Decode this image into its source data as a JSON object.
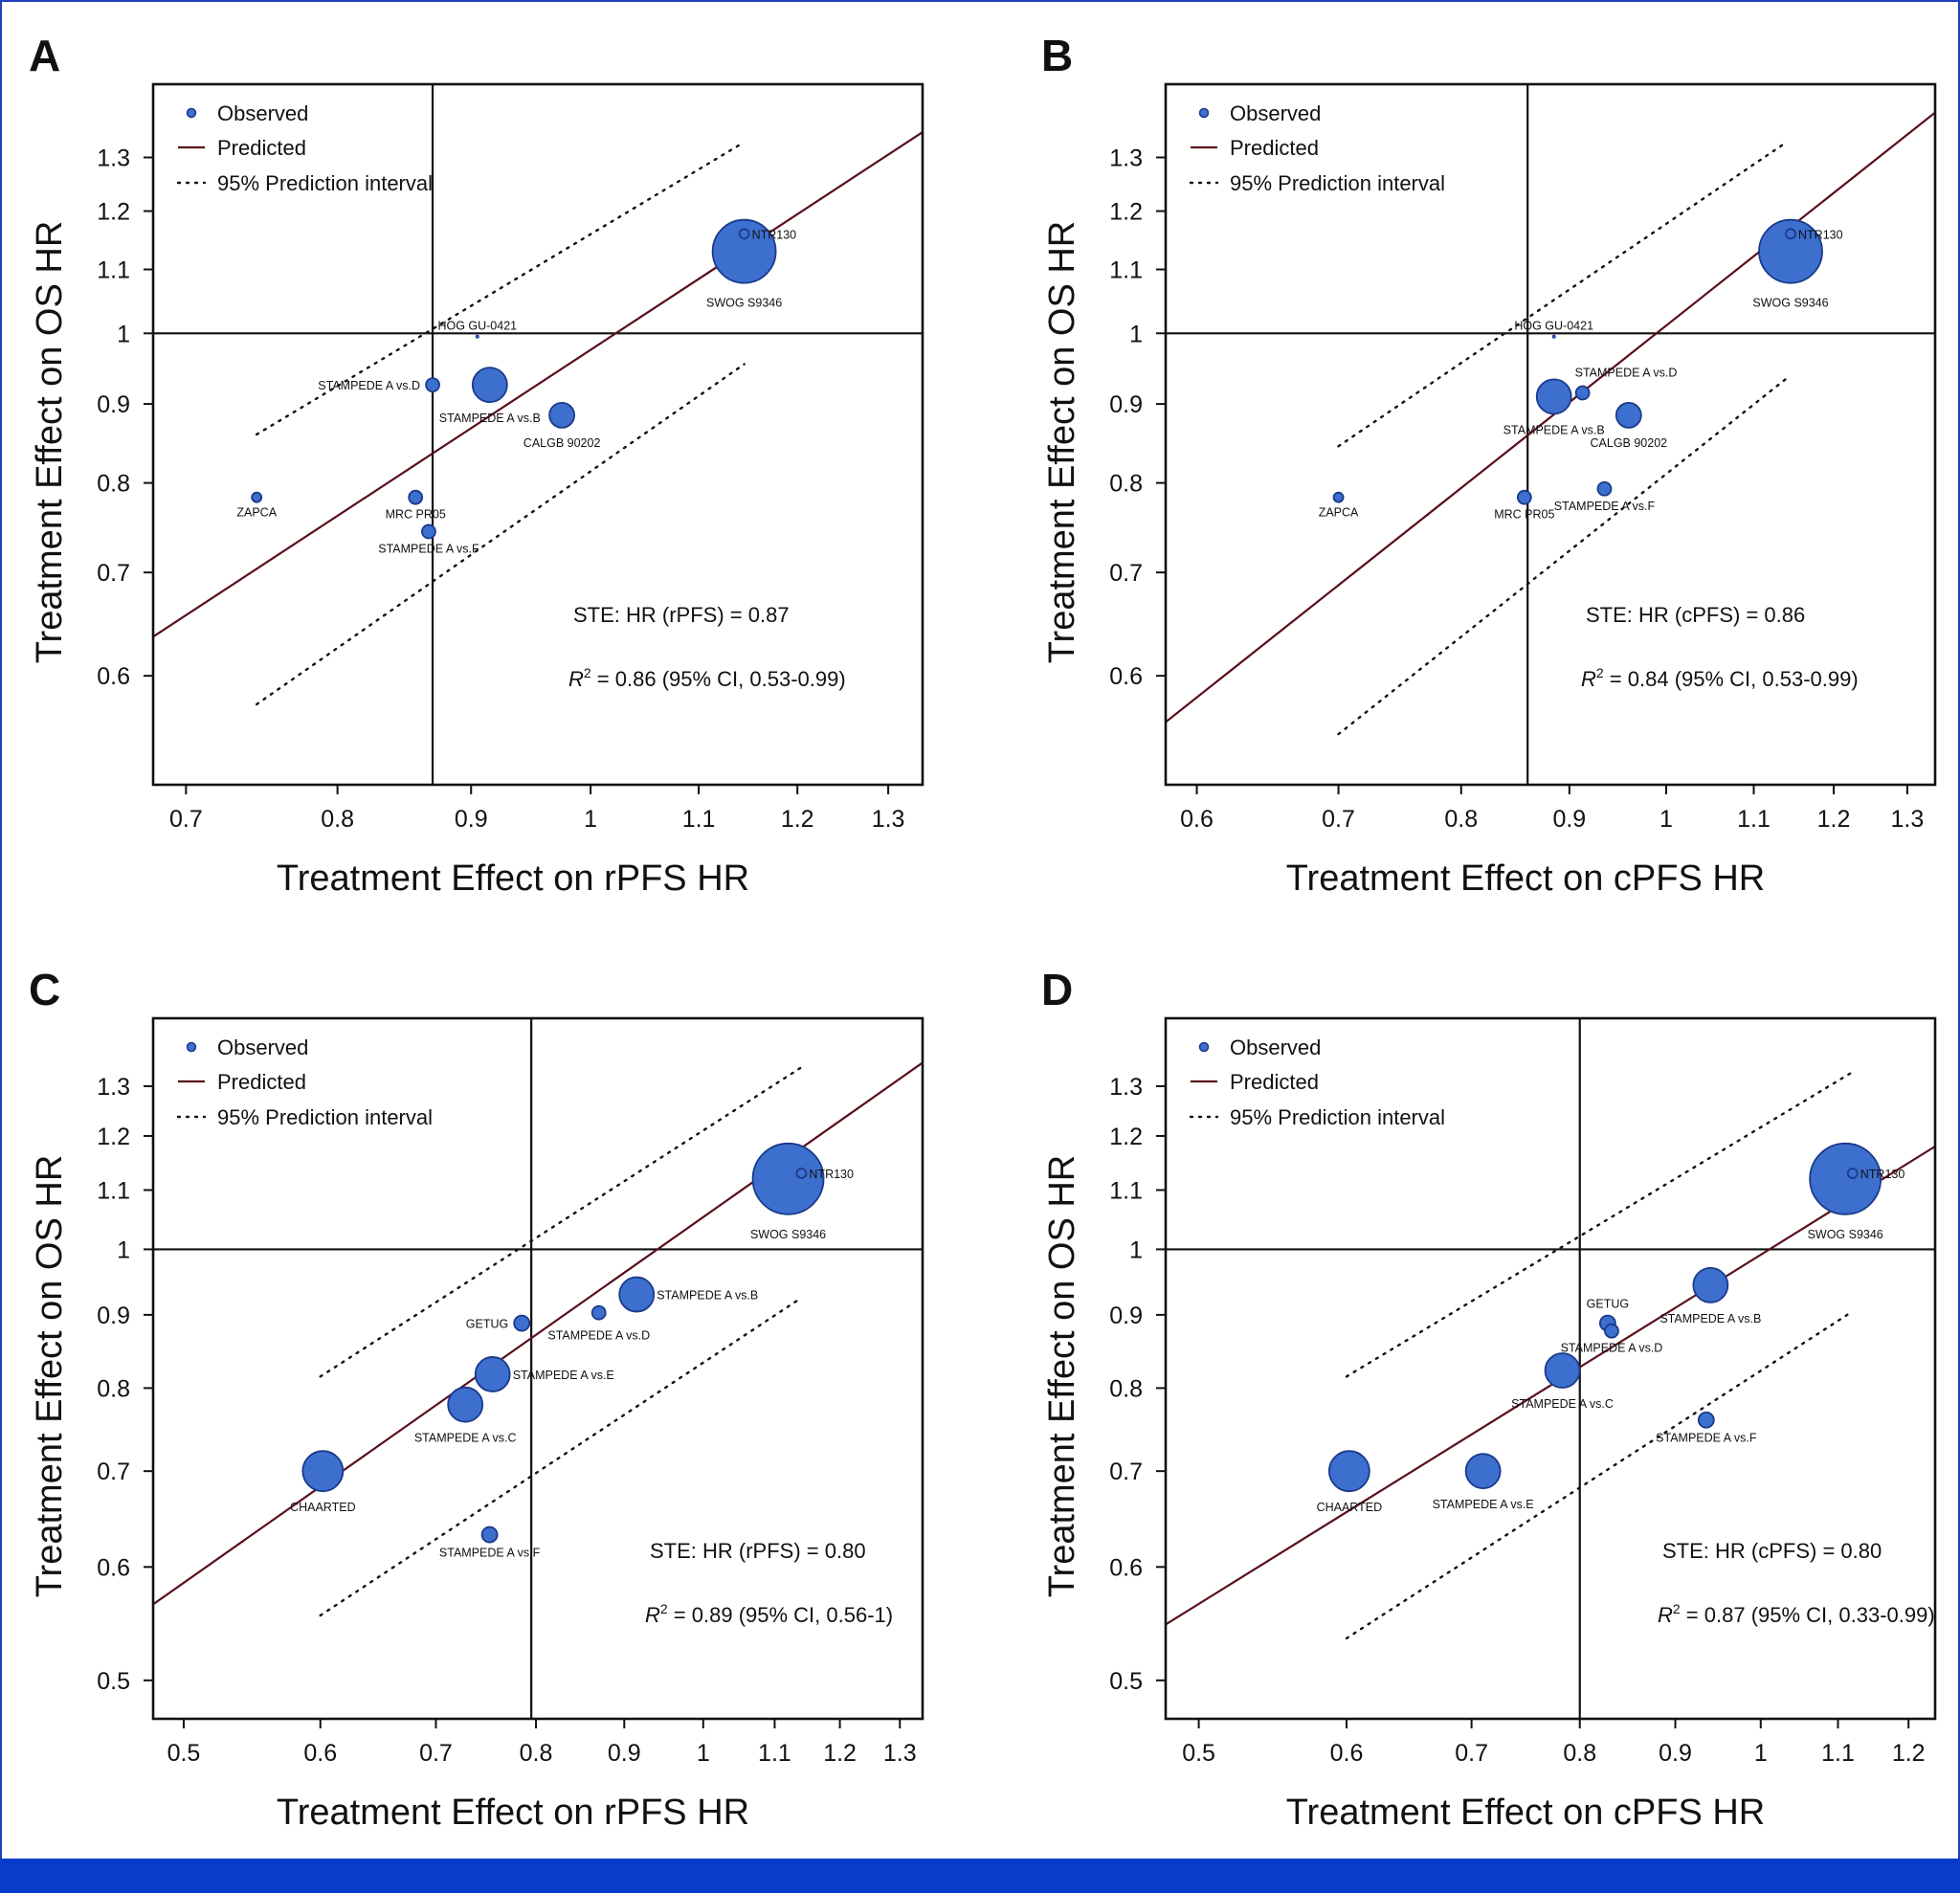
{
  "colors": {
    "point_fill": "#3d6fcf",
    "point_stroke": "#1a3a8a",
    "predicted_line": "#5a0f1a",
    "frame_border": "#1f3fbf",
    "bottom_bar": "#0a3ccc"
  },
  "chart_data": [
    {
      "panel": "A",
      "type": "scatter",
      "xlabel": "Treatment Effect on rPFS HR",
      "ylabel": "Treatment Effect on OS HR",
      "xscale": "log",
      "yscale": "log",
      "xlim": [
        0.68,
        1.34
      ],
      "ylim": [
        0.51,
        1.45
      ],
      "xticks": [
        0.7,
        0.8,
        0.9,
        1,
        1.1,
        1.2,
        1.3
      ],
      "xtick_labels": [
        "0.7",
        "0.8",
        "0.9",
        "1",
        "1.1",
        "1.2",
        "1.3"
      ],
      "yticks": [
        0.6,
        0.7,
        0.8,
        0.9,
        1,
        1.1,
        1.2,
        1.3
      ],
      "ytick_labels": [
        "0.6",
        "0.7",
        "0.8",
        "0.9",
        "1",
        "1.1",
        "1.2",
        "1.3"
      ],
      "vline": 0.87,
      "hline": 1,
      "predicted": {
        "x": [
          0.68,
          1.34
        ],
        "y": [
          0.636,
          1.35
        ]
      },
      "pi_upper": {
        "x": [
          0.745,
          1.145
        ],
        "y": [
          0.86,
          1.33
        ]
      },
      "pi_lower": {
        "x": [
          0.745,
          1.145
        ],
        "y": [
          0.575,
          0.955
        ]
      },
      "legend": {
        "observed": "Observed",
        "predicted": "Predicted",
        "interval": "95% Prediction interval"
      },
      "ste_text": "STE: HR (rPFS) = 0.87",
      "r2_symbol": "R",
      "r2_sup": "2",
      "r2_text": " = 0.86 (95% CI, 0.53-0.99)",
      "points": [
        {
          "label": "NTR130",
          "x": 1.145,
          "y": 1.16,
          "r": 5,
          "hollow": true,
          "lpos": "right"
        },
        {
          "label": "SWOG S9346",
          "x": 1.145,
          "y": 1.13,
          "r": 33,
          "lpos": "below",
          "loff": 10
        },
        {
          "label": "HOG GU-0421",
          "x": 0.905,
          "y": 0.995,
          "r": 1.5,
          "lpos": "above",
          "loff": 6
        },
        {
          "label": "STAMPEDE A vs.D",
          "x": 0.87,
          "y": 0.926,
          "r": 7,
          "lpos": "left"
        },
        {
          "label": "STAMPEDE A vs.B",
          "x": 0.915,
          "y": 0.926,
          "r": 18,
          "lpos": "below",
          "loff": 6
        },
        {
          "label": "CALGB 90202",
          "x": 0.975,
          "y": 0.885,
          "r": 13,
          "lpos": "below",
          "loff": 5
        },
        {
          "label": "ZAPCA",
          "x": 0.745,
          "y": 0.783,
          "r": 5,
          "lpos": "below"
        },
        {
          "label": "MRC PR05",
          "x": 0.857,
          "y": 0.783,
          "r": 7,
          "lpos": "below"
        },
        {
          "label": "STAMPEDE A vs.F",
          "x": 0.867,
          "y": 0.744,
          "r": 7,
          "lpos": "below"
        }
      ]
    },
    {
      "panel": "B",
      "type": "scatter",
      "xlabel": "Treatment Effect on cPFS HR",
      "ylabel": "Treatment Effect on OS HR",
      "xscale": "log",
      "yscale": "log",
      "xlim": [
        0.58,
        1.34
      ],
      "ylim": [
        0.51,
        1.45
      ],
      "xticks": [
        0.6,
        0.7,
        0.8,
        0.9,
        1,
        1.1,
        1.2,
        1.3
      ],
      "xtick_labels": [
        "0.6",
        "0.7",
        "0.8",
        "0.9",
        "1",
        "1.1",
        "1.2",
        "1.3"
      ],
      "yticks": [
        0.6,
        0.7,
        0.8,
        0.9,
        1,
        1.1,
        1.2,
        1.3
      ],
      "ytick_labels": [
        "0.6",
        "0.7",
        "0.8",
        "0.9",
        "1",
        "1.1",
        "1.2",
        "1.3"
      ],
      "vline": 0.86,
      "hline": 1,
      "predicted": {
        "x": [
          0.58,
          1.34
        ],
        "y": [
          0.56,
          1.39
        ]
      },
      "pi_upper": {
        "x": [
          0.7,
          1.14
        ],
        "y": [
          0.845,
          1.33
        ]
      },
      "pi_lower": {
        "x": [
          0.7,
          1.14
        ],
        "y": [
          0.55,
          0.935
        ]
      },
      "legend": {
        "observed": "Observed",
        "predicted": "Predicted",
        "interval": "95% Prediction interval"
      },
      "ste_text": "STE: HR (cPFS) = 0.86",
      "r2_symbol": "R",
      "r2_sup": "2",
      "r2_text": " = 0.84 (95% CI, 0.53-0.99)",
      "points": [
        {
          "label": "NTR130",
          "x": 1.145,
          "y": 1.16,
          "r": 5,
          "hollow": true,
          "lpos": "right"
        },
        {
          "label": "SWOG S9346",
          "x": 1.145,
          "y": 1.13,
          "r": 33,
          "lpos": "below",
          "loff": 10
        },
        {
          "label": "HOG GU-0421",
          "x": 0.885,
          "y": 0.995,
          "r": 1.5,
          "lpos": "above",
          "loff": 6
        },
        {
          "label": "STAMPEDE A vs.D",
          "x": 0.913,
          "y": 0.915,
          "r": 7,
          "lpos": "above-right"
        },
        {
          "label": "STAMPEDE A vs.B",
          "x": 0.885,
          "y": 0.91,
          "r": 18,
          "lpos": "below",
          "loff": 6
        },
        {
          "label": "CALGB 90202",
          "x": 0.96,
          "y": 0.885,
          "r": 13,
          "lpos": "below",
          "loff": 5
        },
        {
          "label": "ZAPCA",
          "x": 0.7,
          "y": 0.783,
          "r": 5,
          "lpos": "below"
        },
        {
          "label": "MRC PR05",
          "x": 0.857,
          "y": 0.783,
          "r": 7,
          "lpos": "below"
        },
        {
          "label": "STAMPEDE A vs.F",
          "x": 0.935,
          "y": 0.793,
          "r": 7,
          "lpos": "below"
        }
      ]
    },
    {
      "panel": "C",
      "type": "scatter",
      "xlabel": "Treatment Effect on rPFS HR",
      "ylabel": "Treatment Effect on OS HR",
      "xscale": "log",
      "yscale": "log",
      "xlim": [
        0.48,
        1.34
      ],
      "ylim": [
        0.47,
        1.45
      ],
      "xticks": [
        0.5,
        0.6,
        0.7,
        0.8,
        0.9,
        1,
        1.1,
        1.2,
        1.3
      ],
      "xtick_labels": [
        "0.5",
        "0.6",
        "0.7",
        "0.8",
        "0.9",
        "1",
        "1.1",
        "1.2",
        "1.3"
      ],
      "yticks": [
        0.5,
        0.6,
        0.7,
        0.8,
        0.9,
        1,
        1.1,
        1.2,
        1.3
      ],
      "ytick_labels": [
        "0.5",
        "0.6",
        "0.7",
        "0.8",
        "0.9",
        "1",
        "1.1",
        "1.2",
        "1.3"
      ],
      "vline": 0.795,
      "hline": 1,
      "predicted": {
        "x": [
          0.48,
          1.34
        ],
        "y": [
          0.565,
          1.35
        ]
      },
      "pi_upper": {
        "x": [
          0.6,
          1.14
        ],
        "y": [
          0.815,
          1.34
        ]
      },
      "pi_lower": {
        "x": [
          0.6,
          1.14
        ],
        "y": [
          0.555,
          0.925
        ]
      },
      "legend": {
        "observed": "Observed",
        "predicted": "Predicted",
        "interval": "95% Prediction interval"
      },
      "ste_text": "STE: HR (rPFS) = 0.80",
      "r2_symbol": "R",
      "r2_sup": "2",
      "r2_text": " = 0.89 (95% CI, 0.56-1)",
      "points": [
        {
          "label": "NTR130",
          "x": 1.14,
          "y": 1.13,
          "r": 5,
          "hollow": true,
          "lpos": "right"
        },
        {
          "label": "SWOG S9346",
          "x": 1.12,
          "y": 1.12,
          "r": 37,
          "lpos": "below",
          "loff": 10
        },
        {
          "label": "STAMPEDE A vs.B",
          "x": 0.915,
          "y": 0.93,
          "r": 18,
          "lpos": "right"
        },
        {
          "label": "GETUG",
          "x": 0.785,
          "y": 0.888,
          "r": 8,
          "lpos": "left"
        },
        {
          "label": "STAMPEDE A vs.D",
          "x": 0.87,
          "y": 0.903,
          "r": 7,
          "lpos": "below",
          "loff": 6
        },
        {
          "label": "STAMPEDE A vs.E",
          "x": 0.755,
          "y": 0.818,
          "r": 18,
          "lpos": "right"
        },
        {
          "label": "STAMPEDE A vs.C",
          "x": 0.728,
          "y": 0.779,
          "r": 18,
          "lpos": "below",
          "loff": 6
        },
        {
          "label": "CHAARTED",
          "x": 0.602,
          "y": 0.7,
          "r": 21,
          "lpos": "below",
          "loff": 6
        },
        {
          "label": "STAMPEDE A vs.F",
          "x": 0.752,
          "y": 0.632,
          "r": 8,
          "lpos": "below"
        }
      ]
    },
    {
      "panel": "D",
      "type": "scatter",
      "xlabel": "Treatment Effect on cPFS HR",
      "ylabel": "Treatment Effect on OS HR",
      "xscale": "log",
      "yscale": "log",
      "xlim": [
        0.48,
        1.24
      ],
      "ylim": [
        0.47,
        1.45
      ],
      "xticks": [
        0.5,
        0.6,
        0.7,
        0.8,
        0.9,
        1,
        1.1,
        1.2
      ],
      "xtick_labels": [
        "0.5",
        "0.6",
        "0.7",
        "0.8",
        "0.9",
        "1",
        "1.1",
        "1.2"
      ],
      "yticks": [
        0.5,
        0.6,
        0.7,
        0.8,
        0.9,
        1,
        1.1,
        1.2,
        1.3
      ],
      "ytick_labels": [
        "0.5",
        "0.6",
        "0.7",
        "0.8",
        "0.9",
        "1",
        "1.1",
        "1.2",
        "1.3"
      ],
      "vline": 0.8,
      "hline": 1,
      "predicted": {
        "x": [
          0.48,
          1.24
        ],
        "y": [
          0.547,
          1.18
        ]
      },
      "pi_upper": {
        "x": [
          0.6,
          1.12
        ],
        "y": [
          0.815,
          1.33
        ]
      },
      "pi_lower": {
        "x": [
          0.6,
          1.12
        ],
        "y": [
          0.535,
          0.905
        ]
      },
      "legend": {
        "observed": "Observed",
        "predicted": "Predicted",
        "interval": "95% Prediction interval"
      },
      "ste_text": "STE: HR (cPFS) = 0.80",
      "r2_symbol": "R",
      "r2_sup": "2",
      "r2_text": " = 0.87 (95% CI, 0.33-0.99)",
      "points": [
        {
          "label": "NTR130",
          "x": 1.12,
          "y": 1.13,
          "r": 5,
          "hollow": true,
          "lpos": "right"
        },
        {
          "label": "SWOG S9346",
          "x": 1.11,
          "y": 1.12,
          "r": 37,
          "lpos": "below",
          "loff": 10
        },
        {
          "label": "STAMPEDE A vs.B",
          "x": 0.94,
          "y": 0.944,
          "r": 18,
          "lpos": "below",
          "loff": 6
        },
        {
          "label": "GETUG",
          "x": 0.828,
          "y": 0.888,
          "r": 8,
          "lpos": "above",
          "loff": 8
        },
        {
          "label": "STAMPEDE A vs.D",
          "x": 0.832,
          "y": 0.877,
          "r": 7,
          "lpos": "below"
        },
        {
          "label": "STAMPEDE A vs.C",
          "x": 0.783,
          "y": 0.823,
          "r": 18,
          "lpos": "below",
          "loff": 6
        },
        {
          "label": "STAMPEDE A vs.F",
          "x": 0.935,
          "y": 0.76,
          "r": 8,
          "lpos": "below"
        },
        {
          "label": "CHAARTED",
          "x": 0.602,
          "y": 0.7,
          "r": 21,
          "lpos": "below",
          "loff": 6
        },
        {
          "label": "STAMPEDE A vs.E",
          "x": 0.71,
          "y": 0.7,
          "r": 18,
          "lpos": "below",
          "loff": 6
        }
      ]
    }
  ]
}
